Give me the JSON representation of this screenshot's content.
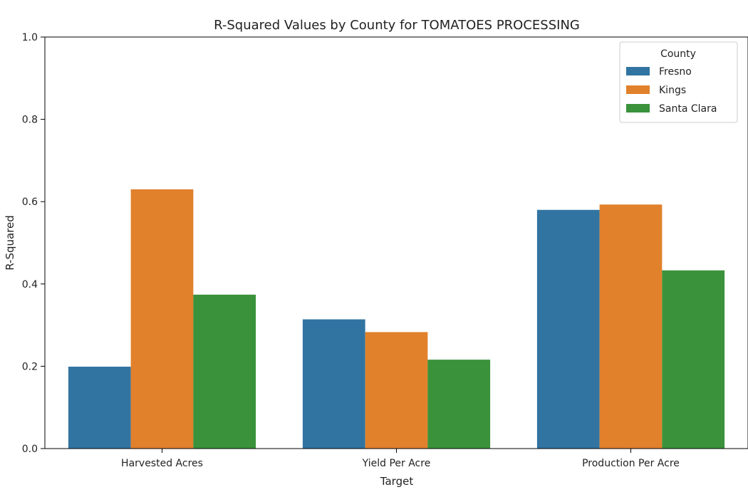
{
  "chart_data": {
    "type": "bar",
    "title": "R-Squared Values by County for TOMATOES PROCESSING",
    "xlabel": "Target",
    "ylabel": "R-Squared",
    "categories": [
      "Harvested Acres",
      "Yield Per Acre",
      "Production Per Acre"
    ],
    "series": [
      {
        "name": "Fresno",
        "color": "#3274a1",
        "values": [
          0.199,
          0.314,
          0.58
        ]
      },
      {
        "name": "Kings",
        "color": "#e1812c",
        "values": [
          0.63,
          0.283,
          0.593
        ]
      },
      {
        "name": "Santa Clara",
        "color": "#3a923a",
        "values": [
          0.374,
          0.216,
          0.433
        ]
      }
    ],
    "ylim": [
      0.0,
      1.0
    ],
    "yticks": [
      0.0,
      0.2,
      0.4,
      0.6,
      0.8,
      1.0
    ],
    "ytick_labels": [
      "0.0",
      "0.2",
      "0.4",
      "0.6",
      "0.8",
      "1.0"
    ],
    "legend": {
      "title": "County",
      "position": "top-right"
    },
    "grid": false
  }
}
